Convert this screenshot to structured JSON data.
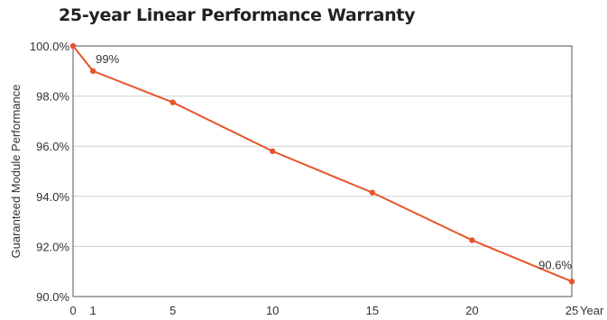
{
  "chart_data": {
    "type": "line",
    "title": "25-year Linear Performance Warranty",
    "ylabel": "Guaranteed Module Performance",
    "xlabel": "Year",
    "x": [
      0,
      1,
      5,
      10,
      15,
      20,
      25
    ],
    "x_ticks": [
      0,
      1,
      5,
      10,
      15,
      20,
      25
    ],
    "y_ticks": [
      "100.0%",
      "98.0%",
      "96.0%",
      "94.0%",
      "92.0%",
      "90.0%"
    ],
    "y_tick_values": [
      100,
      98,
      96,
      94,
      92,
      90
    ],
    "xlim": [
      0,
      25
    ],
    "ylim": [
      90,
      100
    ],
    "grid": "horizontal",
    "series": [
      {
        "values": [
          100,
          99,
          97.75,
          95.8,
          94.15,
          92.25,
          90.6
        ],
        "color": "#e8542a"
      }
    ],
    "annotations": [
      {
        "x": 1,
        "y": 99,
        "text": "99%"
      },
      {
        "x": 25,
        "y": 90.6,
        "text": "90.6%"
      }
    ]
  }
}
